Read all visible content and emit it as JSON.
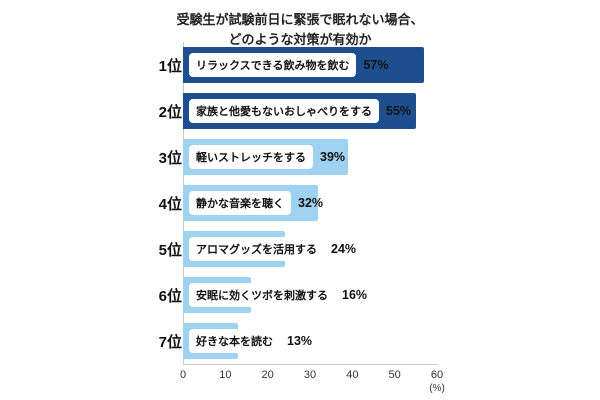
{
  "title": {
    "line1": "受験生が試験前日に緊張で眠れない場合、",
    "line2": "どのような対策が有効か"
  },
  "chart_data": {
    "type": "bar",
    "orientation": "horizontal",
    "title": "受験生が試験前日に緊張で眠れない場合、どのような対策が有効か",
    "ranks": [
      "1位",
      "2位",
      "3位",
      "4位",
      "5位",
      "6位",
      "7位"
    ],
    "categories": [
      "リラックスできる飲み物を飲む",
      "家族と他愛もないおしゃべりをする",
      "軽いストレッチをする",
      "静かな音楽を聴く",
      "アロマグッズを活用する",
      "安眠に効くツボを刺激する",
      "好きな本を読む"
    ],
    "values": [
      57,
      55,
      39,
      32,
      24,
      16,
      13
    ],
    "value_labels": [
      "57%",
      "55%",
      "39%",
      "32%",
      "24%",
      "16%",
      "13%"
    ],
    "bar_colors": [
      "#1d4f8f",
      "#1d4f8f",
      "#9fd2f0",
      "#9fd2f0",
      "#9fd2f0",
      "#9fd2f0",
      "#9fd2f0"
    ],
    "xlim": [
      0,
      60
    ],
    "x_ticks": [
      0,
      10,
      20,
      30,
      40,
      50,
      60
    ],
    "x_unit": "(%)",
    "xlabel": "",
    "ylabel": "",
    "grid": false,
    "legend": false
  }
}
